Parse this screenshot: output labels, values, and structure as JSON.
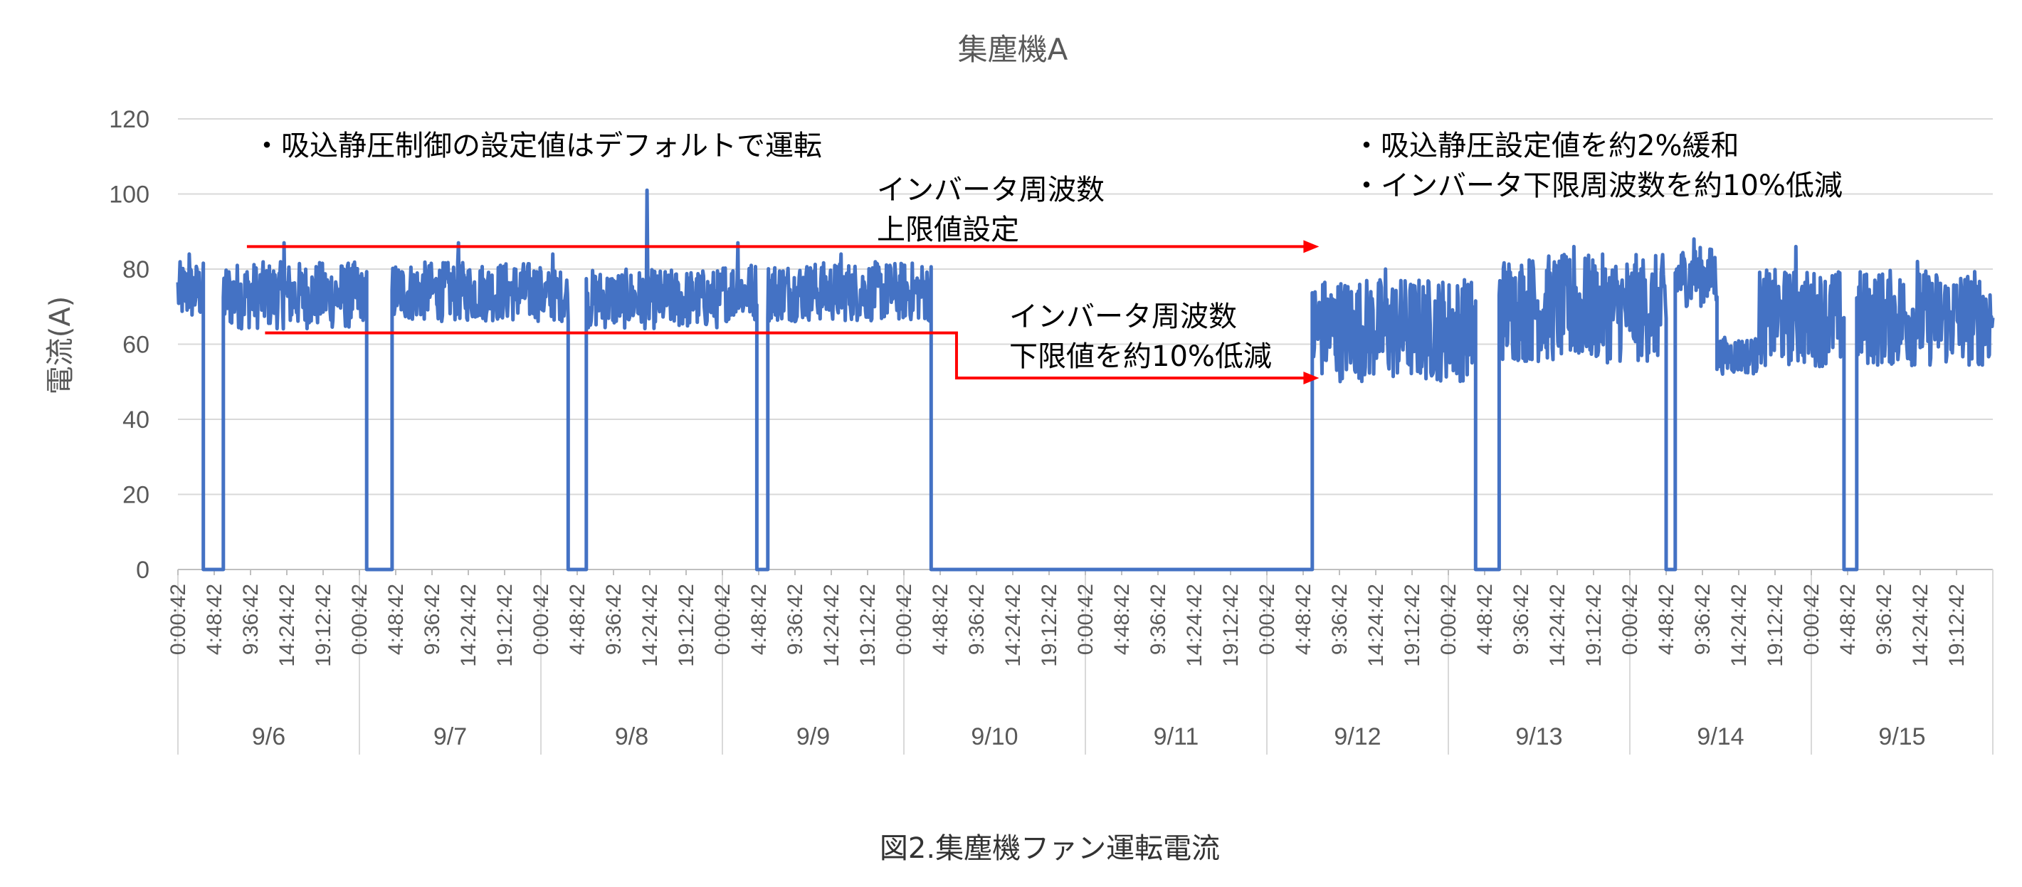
{
  "chart_data": {
    "type": "line",
    "title": "集塵機A",
    "ylabel": "電流(A)",
    "xlabel": "",
    "ylim": [
      0,
      120
    ],
    "yticks": [
      0,
      20,
      40,
      60,
      80,
      100,
      120
    ],
    "grid": true,
    "legend": "none",
    "x_time_labels": [
      "0:00:42",
      "4:48:42",
      "9:36:42",
      "14:24:42",
      "19:12:42"
    ],
    "days": [
      "9/6",
      "9/7",
      "9/8",
      "9/9",
      "9/10",
      "9/11",
      "9/12",
      "9/13",
      "9/14",
      "9/15"
    ],
    "series": [
      {
        "color": "#4472C4",
        "segments": [
          {
            "start_day": 0.0,
            "end_day": 0.14,
            "low": 66,
            "high": 82,
            "spike": 84
          },
          {
            "start_day": 0.14,
            "end_day": 0.25,
            "value": 0
          },
          {
            "start_day": 0.25,
            "end_day": 1.0,
            "low": 64,
            "high": 82,
            "spike": 87
          },
          {
            "start_day": 1.0,
            "end_day": 1.04,
            "low": 66,
            "high": 80
          },
          {
            "start_day": 1.04,
            "end_day": 1.18,
            "value": 0
          },
          {
            "start_day": 1.18,
            "end_day": 2.0,
            "low": 66,
            "high": 82,
            "spike": 87
          },
          {
            "start_day": 2.0,
            "end_day": 2.15,
            "low": 66,
            "high": 80,
            "spike": 84
          },
          {
            "start_day": 2.15,
            "end_day": 2.25,
            "value": 0
          },
          {
            "start_day": 2.25,
            "end_day": 3.0,
            "low": 64,
            "high": 80,
            "spike": 101
          },
          {
            "start_day": 3.0,
            "end_day": 3.19,
            "low": 66,
            "high": 82,
            "spike": 87
          },
          {
            "start_day": 3.19,
            "end_day": 3.25,
            "value": 0
          },
          {
            "start_day": 3.25,
            "end_day": 4.15,
            "low": 66,
            "high": 82,
            "spike": 84
          },
          {
            "start_day": 4.15,
            "end_day": 6.25,
            "value": 0
          },
          {
            "start_day": 6.25,
            "end_day": 7.15,
            "low": 50,
            "high": 78,
            "spike": 80
          },
          {
            "start_day": 7.15,
            "end_day": 7.28,
            "value": 0
          },
          {
            "start_day": 7.28,
            "end_day": 8.2,
            "low": 55,
            "high": 84,
            "spike": 86
          },
          {
            "start_day": 8.2,
            "end_day": 8.25,
            "value": 0
          },
          {
            "start_day": 8.25,
            "end_day": 8.48,
            "low": 70,
            "high": 86,
            "spike": 88
          },
          {
            "start_day": 8.48,
            "end_day": 8.7,
            "low": 52,
            "high": 62
          },
          {
            "start_day": 8.7,
            "end_day": 9.18,
            "low": 54,
            "high": 80,
            "spike": 86
          },
          {
            "start_day": 9.18,
            "end_day": 9.25,
            "value": 0
          },
          {
            "start_day": 9.25,
            "end_day": 10.0,
            "low": 54,
            "high": 80,
            "spike": 82
          }
        ]
      }
    ],
    "annotations": [
      {
        "lines": [
          "・吸込静圧制御の設定値はデフォルトで運転"
        ]
      },
      {
        "lines": [
          "インバータ周波数",
          "上限値設定"
        ],
        "arrow": {
          "y": 86,
          "from_day": 0.38,
          "to_day": 6.28
        }
      },
      {
        "lines": [
          "インバータ周波数",
          "下限値を約10%低減"
        ],
        "arrow": {
          "y_start": 63,
          "y_end": 51,
          "from_day": 0.48,
          "to_day": 6.28
        }
      },
      {
        "lines": [
          "・吸込静圧設定値を約2%緩和",
          "・インバータ下限周波数を約10%低減"
        ]
      }
    ]
  },
  "caption": "図2.集塵機ファン運転電流"
}
